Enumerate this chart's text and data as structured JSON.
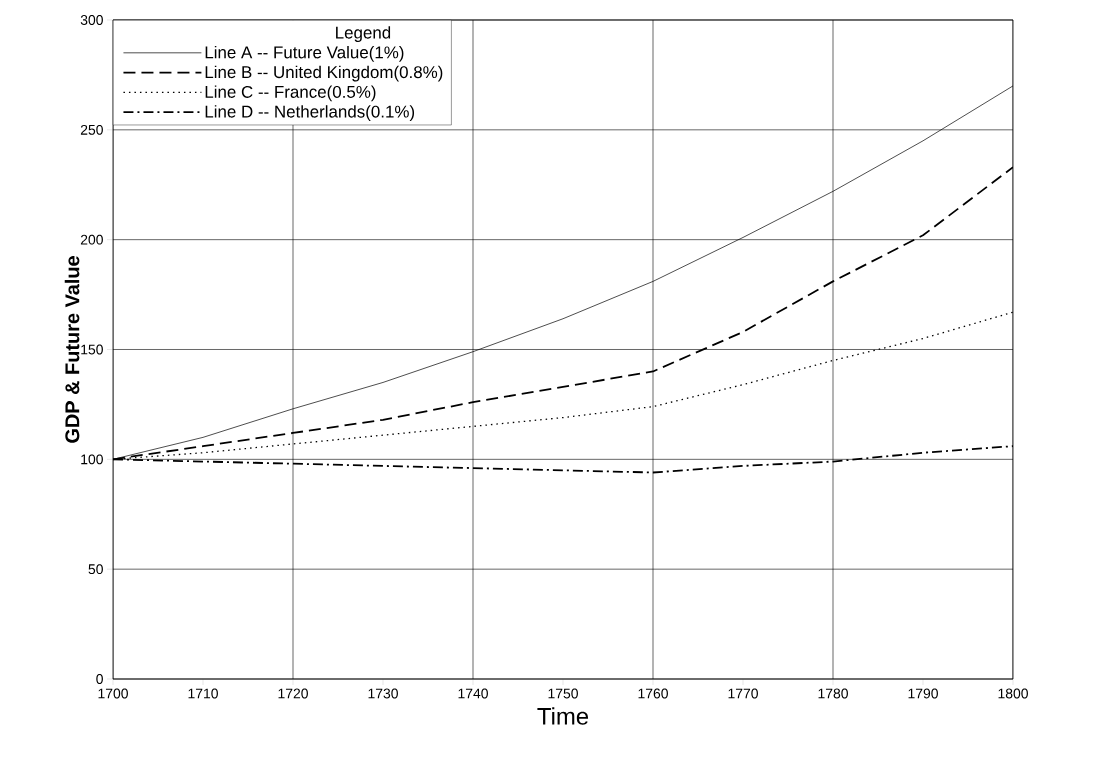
{
  "chart_data": {
    "type": "line",
    "xlabel": "Time",
    "ylabel": "GDP & Future Value",
    "legend_title": "Legend",
    "x": [
      1700,
      1710,
      1720,
      1730,
      1740,
      1750,
      1760,
      1770,
      1780,
      1790,
      1800
    ],
    "series": [
      {
        "name": "Line A -- Future Value(1%)",
        "color": "#000000",
        "line_style": "solid",
        "values": [
          100,
          110,
          123,
          135,
          149,
          164,
          181,
          201,
          222,
          245,
          270
        ]
      },
      {
        "name": "Line B -- United Kingdom(0.8%)",
        "color": "#000000",
        "line_style": "dashed",
        "values": [
          100,
          106,
          112,
          118,
          126,
          133,
          140,
          158,
          181,
          202,
          233
        ]
      },
      {
        "name": "Line C -- France(0.5%)",
        "color": "#000000",
        "line_style": "dotted",
        "values": [
          100,
          103,
          107,
          111,
          115,
          119,
          124,
          134,
          145,
          155,
          167
        ]
      },
      {
        "name": "Line D -- Netherlands(0.1%)",
        "color": "#000000",
        "line_style": "dashdot",
        "values": [
          100,
          99,
          98,
          97,
          96,
          95,
          94,
          97,
          99,
          103,
          106
        ]
      }
    ],
    "xlim": [
      1700,
      1800
    ],
    "ylim": [
      0,
      300
    ],
    "xticks": [
      1700,
      1710,
      1720,
      1730,
      1740,
      1750,
      1760,
      1770,
      1780,
      1790,
      1800
    ],
    "yticks": [
      0,
      50,
      100,
      150,
      200,
      250,
      300
    ],
    "grid": true,
    "legend": "top left",
    "marker": "none"
  }
}
